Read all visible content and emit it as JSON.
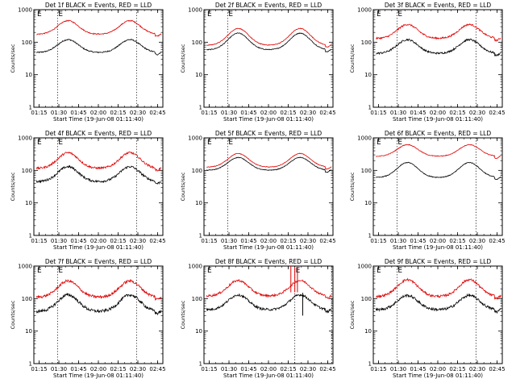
{
  "figure": {
    "ylabel": "Counts/sec",
    "xlabel": "Start Time (19-Jun-08 01:11:40)",
    "x_tick_labels": [
      "01:15",
      "01:30",
      "01:45",
      "02:00",
      "02:15",
      "02:30",
      "02:45"
    ],
    "y_tick_labels": [
      "1",
      "10",
      "100",
      "1000"
    ],
    "marker_label": "E",
    "colors": {
      "events": "#000000",
      "lld": "#e00000",
      "axes": "#000000",
      "background": "#ffffff"
    }
  },
  "chart_data": [
    {
      "type": "line",
      "title": "Det 1f BLACK = Events, RED = LLD",
      "xlabel": "Start Time (19-Jun-08 01:11:40)",
      "ylabel": "Counts/sec",
      "ylim": [
        1,
        1000
      ],
      "log_y": true,
      "xlim": [
        "01:11",
        "02:49"
      ],
      "noise": 0.018,
      "ev_min": 48,
      "ev_max": 120,
      "lld_min": 175,
      "lld_max": 460,
      "markers": [
        "01:29",
        "02:29"
      ],
      "glitch": false,
      "series": [
        {
          "name": "BLACK = Events",
          "color": "#000000"
        },
        {
          "name": "RED = LLD",
          "color": "#e00000"
        }
      ]
    },
    {
      "type": "line",
      "title": "Det 2f BLACK = Events, RED = LLD",
      "xlabel": "Start Time (19-Jun-08 01:11:40)",
      "ylabel": "Counts/sec",
      "ylim": [
        1,
        1000
      ],
      "log_y": true,
      "xlim": [
        "01:11",
        "02:49"
      ],
      "noise": 0.012,
      "ev_min": 58,
      "ev_max": 190,
      "lld_min": 80,
      "lld_max": 265,
      "markers": [
        "01:29",
        "02:49"
      ],
      "glitch": false,
      "series": [
        {
          "name": "BLACK = Events",
          "color": "#000000"
        },
        {
          "name": "RED = LLD",
          "color": "#e00000"
        }
      ]
    },
    {
      "type": "line",
      "title": "Det 3f BLACK = Events, RED = LLD",
      "xlabel": "Start Time (19-Jun-08 01:11:40)",
      "ylabel": "Counts/sec",
      "ylim": [
        1,
        1000
      ],
      "log_y": true,
      "xlim": [
        "01:11",
        "02:49"
      ],
      "noise": 0.028,
      "ev_min": 45,
      "ev_max": 120,
      "lld_min": 130,
      "lld_max": 350,
      "markers": [
        "01:29",
        "02:29"
      ],
      "glitch": false,
      "series": [
        {
          "name": "BLACK = Events",
          "color": "#000000"
        },
        {
          "name": "RED = LLD",
          "color": "#e00000"
        }
      ]
    },
    {
      "type": "line",
      "title": "Det 4f BLACK = Events, RED = LLD",
      "xlabel": "Start Time (19-Jun-08 01:11:40)",
      "ylabel": "Counts/sec",
      "ylim": [
        1,
        1000
      ],
      "log_y": true,
      "xlim": [
        "01:11",
        "02:49"
      ],
      "noise": 0.035,
      "ev_min": 45,
      "ev_max": 130,
      "lld_min": 115,
      "lld_max": 350,
      "markers": [
        "01:29",
        "02:29"
      ],
      "glitch": false,
      "series": [
        {
          "name": "BLACK = Events",
          "color": "#000000"
        },
        {
          "name": "RED = LLD",
          "color": "#e00000"
        }
      ]
    },
    {
      "type": "line",
      "title": "Det 5f BLACK = Events, RED = LLD",
      "xlabel": "Start Time (19-Jun-08 01:11:40)",
      "ylabel": "Counts/sec",
      "ylim": [
        1,
        1000
      ],
      "log_y": true,
      "xlim": [
        "01:11",
        "02:49"
      ],
      "noise": 0.01,
      "ev_min": 100,
      "ev_max": 250,
      "lld_min": 125,
      "lld_max": 330,
      "markers": [
        "01:29",
        "02:49"
      ],
      "glitch": false,
      "series": [
        {
          "name": "BLACK = Events",
          "color": "#000000"
        },
        {
          "name": "RED = LLD",
          "color": "#e00000"
        }
      ]
    },
    {
      "type": "line",
      "title": "Det 6f BLACK = Events, RED = LLD",
      "xlabel": "Start Time (19-Jun-08 01:11:40)",
      "ylabel": "Counts/sec",
      "ylim": [
        1,
        1000
      ],
      "log_y": true,
      "xlim": [
        "01:11",
        "02:49"
      ],
      "noise": 0.012,
      "ev_min": 60,
      "ev_max": 175,
      "lld_min": 270,
      "lld_max": 620,
      "markers": [
        "01:29",
        "02:29"
      ],
      "glitch": false,
      "series": [
        {
          "name": "BLACK = Events",
          "color": "#000000"
        },
        {
          "name": "RED = LLD",
          "color": "#e00000"
        }
      ]
    },
    {
      "type": "line",
      "title": "Det 7f BLACK = Events, RED = LLD",
      "xlabel": "Start Time (19-Jun-08 01:11:40)",
      "ylabel": "Counts/sec",
      "ylim": [
        1,
        1000
      ],
      "log_y": true,
      "xlim": [
        "01:11",
        "02:49"
      ],
      "noise": 0.045,
      "ev_min": 40,
      "ev_max": 130,
      "lld_min": 110,
      "lld_max": 350,
      "markers": [
        "01:29",
        "02:29"
      ],
      "glitch": false,
      "series": [
        {
          "name": "BLACK = Events",
          "color": "#000000"
        },
        {
          "name": "RED = LLD",
          "color": "#e00000"
        }
      ]
    },
    {
      "type": "line",
      "title": "Det 8f BLACK = Events, RED = LLD",
      "xlabel": "Start Time (19-Jun-08 01:11:40)",
      "ylabel": "Counts/sec",
      "ylim": [
        1,
        1000
      ],
      "log_y": true,
      "xlim": [
        "01:11",
        "02:49"
      ],
      "noise": 0.035,
      "ev_min": 45,
      "ev_max": 130,
      "lld_min": 120,
      "lld_max": 360,
      "markers": [
        "02:20",
        "02:48"
      ],
      "glitch": true,
      "series": [
        {
          "name": "BLACK = Events",
          "color": "#000000"
        },
        {
          "name": "RED = LLD",
          "color": "#e00000"
        }
      ]
    },
    {
      "type": "line",
      "title": "Det 9f BLACK = Events, RED = LLD",
      "xlabel": "Start Time (19-Jun-08 01:11:40)",
      "ylabel": "Counts/sec",
      "ylim": [
        1,
        1000
      ],
      "log_y": true,
      "xlim": [
        "01:11",
        "02:49"
      ],
      "noise": 0.04,
      "ev_min": 45,
      "ev_max": 125,
      "lld_min": 115,
      "lld_max": 380,
      "markers": [
        "01:29",
        "02:29"
      ],
      "glitch": false,
      "series": [
        {
          "name": "BLACK = Events",
          "color": "#000000"
        },
        {
          "name": "RED = LLD",
          "color": "#e00000"
        }
      ]
    }
  ]
}
